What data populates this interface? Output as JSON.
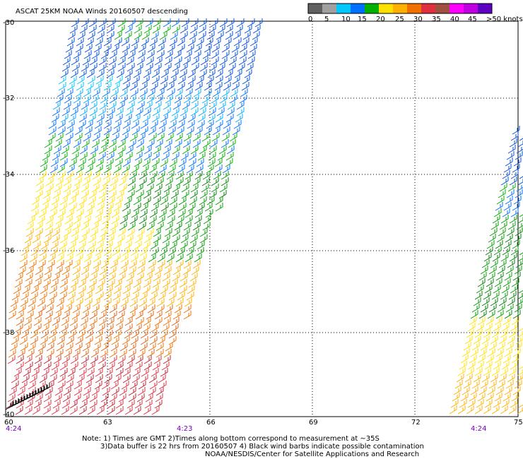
{
  "title": "ASCAT 25KM NOAA Winds 20160507 descending",
  "legend": {
    "labels": [
      "0",
      "5",
      "10",
      "15",
      "20",
      "25",
      "30",
      "35",
      "40",
      "45",
      ">50 knots"
    ],
    "colors": [
      "#606060",
      "#a0a0a0",
      "#00c8ff",
      "#0070ff",
      "#00b000",
      "#ffe000",
      "#ffb000",
      "#f07000",
      "#e03040",
      "#a05040",
      "#ff00ff",
      "#c000e0",
      "#6000c0"
    ]
  },
  "axes": {
    "lat_labels": [
      "-30",
      "-32",
      "-34",
      "-36",
      "-38",
      "-40"
    ],
    "lon_labels": [
      "60",
      "63",
      "66",
      "69",
      "72",
      "75"
    ]
  },
  "times": [
    "4:24",
    "4:23",
    "4:24"
  ],
  "notes": {
    "line1": "Note: 1) Times are GMT 2)Times along bottom correspond to measurement at ~35S",
    "line2": "3)Data buffer is 22 hrs from 20160507 4) Black wind barbs indicate possible contamination",
    "line3": "NOAA/NESDIS/Center for Satellite Applications and Research"
  }
}
